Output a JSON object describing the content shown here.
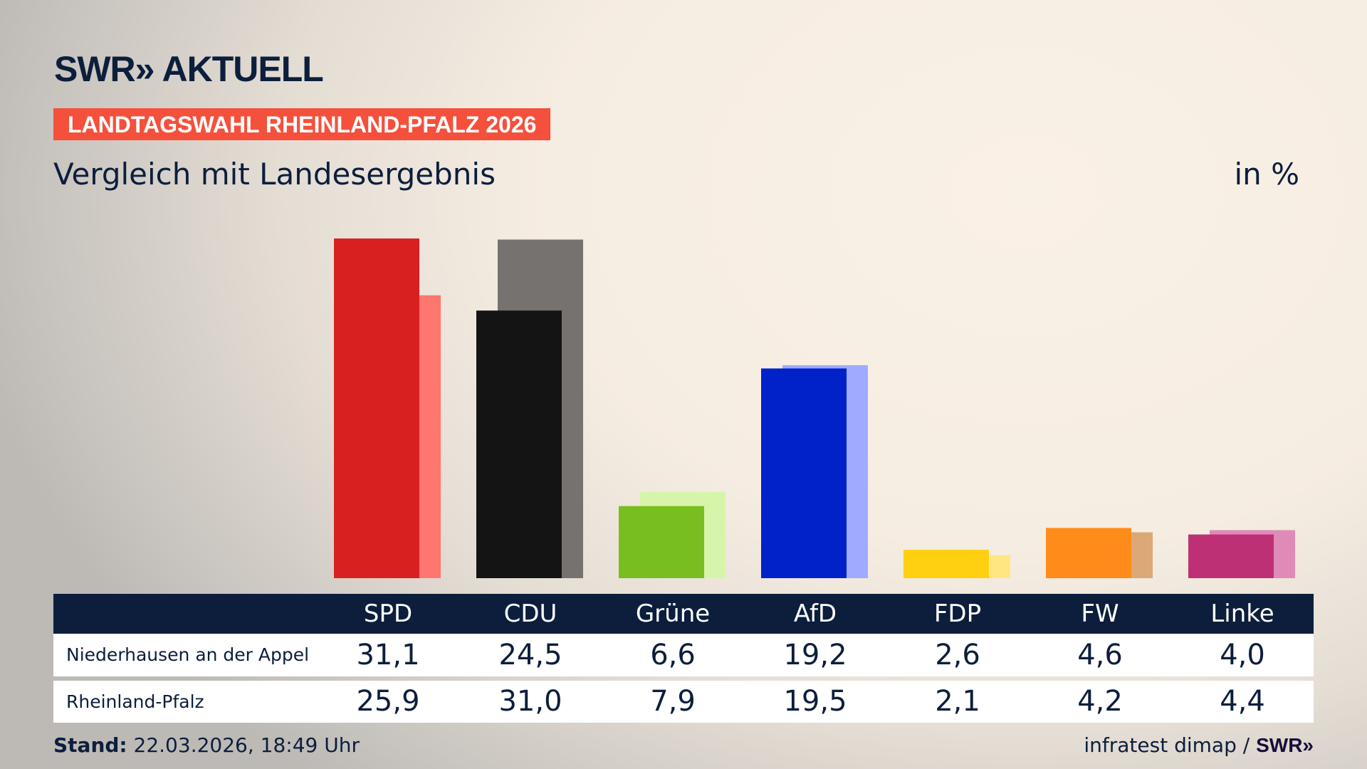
{
  "header": {
    "logo": "SWR» AKTUELL",
    "label": "LANDTAGSWAHL RHEINLAND-PFALZ 2026",
    "subtitle": "Vergleich mit Landesergebnis",
    "unit": "in %"
  },
  "chart_data": {
    "type": "bar",
    "title": "Vergleich mit Landesergebnis",
    "ylabel": "in %",
    "ylim": [
      0,
      32
    ],
    "grid": false,
    "categories": [
      "SPD",
      "CDU",
      "Grüne",
      "AfD",
      "FDP",
      "FW",
      "Linke"
    ],
    "series": [
      {
        "name": "Niederhausen an der Appel",
        "values": [
          "31,1",
          "24,5",
          "6,6",
          "19,2",
          "2,6",
          "4,6",
          "4,0"
        ],
        "numeric": [
          31.1,
          24.5,
          6.6,
          19.2,
          2.6,
          4.6,
          4.0
        ]
      },
      {
        "name": "Rheinland-Pfalz",
        "values": [
          "25,9",
          "31,0",
          "7,9",
          "19,5",
          "2,1",
          "4,2",
          "4,4"
        ],
        "numeric": [
          25.9,
          31.0,
          7.9,
          19.5,
          2.1,
          4.2,
          4.4
        ]
      }
    ],
    "colors_front": [
      "#d92020",
      "#141414",
      "#78be1e",
      "#0022c8",
      "#ffd010",
      "#ff8c1a",
      "#be3075"
    ],
    "colors_back": [
      "#ff7570",
      "#75726f",
      "#d6f5aa",
      "#a0aaff",
      "#ffe680",
      "#dca878",
      "#e08ab8"
    ]
  },
  "footer": {
    "stand_label": "Stand:",
    "stand_value": "22.03.2026, 18:49 Uhr",
    "source": "infratest dimap /",
    "source_logo": "SWR»"
  }
}
